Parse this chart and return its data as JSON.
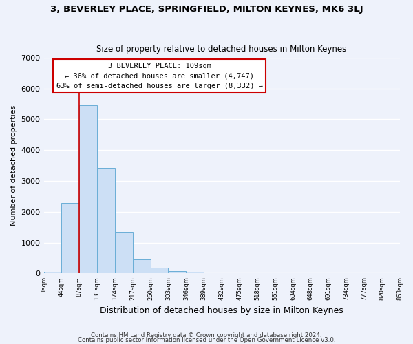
{
  "title": "3, BEVERLEY PLACE, SPRINGFIELD, MILTON KEYNES, MK6 3LJ",
  "subtitle": "Size of property relative to detached houses in Milton Keynes",
  "xlabel": "Distribution of detached houses by size in Milton Keynes",
  "ylabel": "Number of detached properties",
  "bar_values": [
    50,
    2280,
    5450,
    3430,
    1340,
    450,
    175,
    80,
    50,
    0,
    0,
    0,
    0,
    0,
    0,
    0,
    0,
    0,
    0,
    0
  ],
  "bar_labels": [
    "1sqm",
    "44sqm",
    "87sqm",
    "131sqm",
    "174sqm",
    "217sqm",
    "260sqm",
    "303sqm",
    "346sqm",
    "389sqm",
    "432sqm",
    "475sqm",
    "518sqm",
    "561sqm",
    "604sqm",
    "648sqm",
    "691sqm",
    "734sqm",
    "777sqm",
    "820sqm",
    "863sqm"
  ],
  "ylim": [
    0,
    7000
  ],
  "yticks": [
    0,
    1000,
    2000,
    3000,
    4000,
    5000,
    6000,
    7000
  ],
  "bar_color": "#ccdff5",
  "bar_edge_color": "#6aaed6",
  "bg_color": "#eef2fb",
  "plot_bg_color": "#eef2fb",
  "grid_color": "#ffffff",
  "vline_x": 2.0,
  "vline_color": "#cc0000",
  "annotation_title": "3 BEVERLEY PLACE: 109sqm",
  "annotation_line1": "← 36% of detached houses are smaller (4,747)",
  "annotation_line2": "63% of semi-detached houses are larger (8,332) →",
  "annotation_box_color": "#cc0000",
  "footer_line1": "Contains HM Land Registry data © Crown copyright and database right 2024.",
  "footer_line2": "Contains public sector information licensed under the Open Government Licence v3.0.",
  "num_bars": 20
}
